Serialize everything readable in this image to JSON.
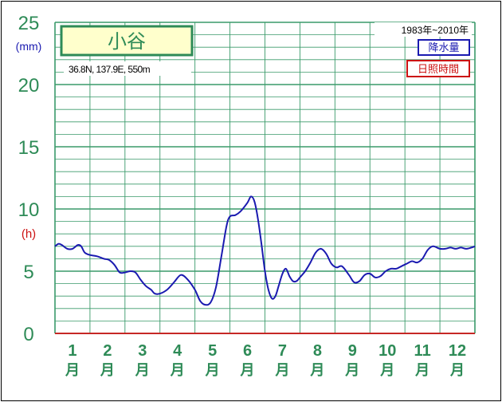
{
  "chart_data": {
    "type": "line",
    "station": "小谷",
    "location": "36.8N,  137.9E,  550m",
    "period": "1983年~2010年",
    "legend": [
      {
        "name": "降水量",
        "color": "#1a1ab0"
      },
      {
        "name": "日照時間",
        "color": "#cc1111"
      }
    ],
    "y_unit_precip": "(mm)",
    "y_unit_sun": "(h)",
    "ylim": [
      0,
      25
    ],
    "yticks": [
      "0",
      "5",
      "10",
      "15",
      "20",
      "25"
    ],
    "months": [
      "1",
      "2",
      "3",
      "4",
      "5",
      "6",
      "7",
      "8",
      "9",
      "10",
      "11",
      "12"
    ],
    "month_suffix": "月",
    "series": [
      {
        "name": "降水量",
        "color": "#1a1ab0",
        "x": [
          0.0,
          0.1,
          0.2,
          0.35,
          0.5,
          0.65,
          0.75,
          0.85,
          1.0,
          1.2,
          1.4,
          1.55,
          1.7,
          1.85,
          2.0,
          2.15,
          2.3,
          2.45,
          2.6,
          2.75,
          2.85,
          3.0,
          3.2,
          3.4,
          3.6,
          3.8,
          4.0,
          4.15,
          4.3,
          4.45,
          4.6,
          4.75,
          4.9,
          5.0,
          5.15,
          5.3,
          5.5,
          5.6,
          5.7,
          5.8,
          5.9,
          6.0,
          6.1,
          6.2,
          6.3,
          6.4,
          6.5,
          6.6,
          6.7,
          6.8,
          6.9,
          7.0,
          7.15,
          7.3,
          7.45,
          7.6,
          7.75,
          7.9,
          8.05,
          8.2,
          8.4,
          8.55,
          8.7,
          8.85,
          9.0,
          9.15,
          9.3,
          9.45,
          9.6,
          9.75,
          9.9,
          10.05,
          10.2,
          10.35,
          10.5,
          10.65,
          10.8,
          11.0,
          11.15,
          11.3,
          11.45,
          11.6,
          11.75,
          11.9,
          12.0
        ],
        "values": [
          7.0,
          7.2,
          7.1,
          6.8,
          6.8,
          7.1,
          7.0,
          6.5,
          6.3,
          6.2,
          6.0,
          5.9,
          5.5,
          4.9,
          4.9,
          5.0,
          4.9,
          4.3,
          3.8,
          3.5,
          3.2,
          3.2,
          3.5,
          4.1,
          4.7,
          4.3,
          3.5,
          2.6,
          2.3,
          2.5,
          3.7,
          6.1,
          8.6,
          9.4,
          9.5,
          9.8,
          10.5,
          11.0,
          10.6,
          9.2,
          7.2,
          5.0,
          3.5,
          2.8,
          3.0,
          3.9,
          4.8,
          5.2,
          4.6,
          4.2,
          4.2,
          4.5,
          5.0,
          5.7,
          6.5,
          6.8,
          6.4,
          5.6,
          5.3,
          5.4,
          4.7,
          4.1,
          4.2,
          4.7,
          4.8,
          4.5,
          4.6,
          5.0,
          5.2,
          5.2,
          5.4,
          5.6,
          5.8,
          5.7,
          6.0,
          6.7,
          7.0,
          6.8,
          6.8,
          6.9,
          6.8,
          6.9,
          6.8,
          6.9,
          7.0
        ]
      }
    ]
  }
}
